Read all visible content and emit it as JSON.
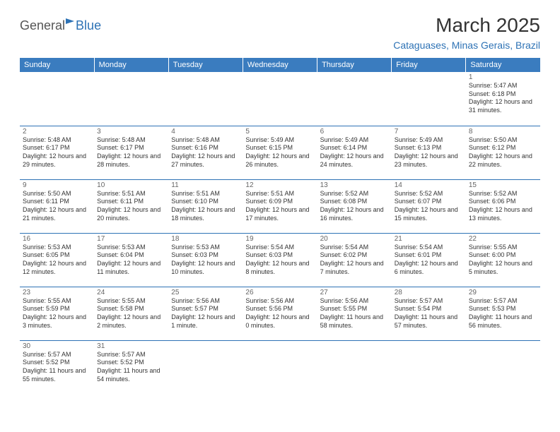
{
  "logo": {
    "text1": "General",
    "text2": "Blue"
  },
  "title": "March 2025",
  "location": "Cataguases, Minas Gerais, Brazil",
  "colors": {
    "header_bg": "#3a7cbf",
    "header_fg": "#ffffff",
    "accent": "#2d72b5",
    "text": "#333333",
    "muted": "#666666",
    "logo_gray": "#555555"
  },
  "day_headers": [
    "Sunday",
    "Monday",
    "Tuesday",
    "Wednesday",
    "Thursday",
    "Friday",
    "Saturday"
  ],
  "weeks": [
    [
      null,
      null,
      null,
      null,
      null,
      null,
      {
        "n": "1",
        "sunrise": "5:47 AM",
        "sunset": "6:18 PM",
        "daylight": "12 hours and 31 minutes."
      }
    ],
    [
      {
        "n": "2",
        "sunrise": "5:48 AM",
        "sunset": "6:17 PM",
        "daylight": "12 hours and 29 minutes."
      },
      {
        "n": "3",
        "sunrise": "5:48 AM",
        "sunset": "6:17 PM",
        "daylight": "12 hours and 28 minutes."
      },
      {
        "n": "4",
        "sunrise": "5:48 AM",
        "sunset": "6:16 PM",
        "daylight": "12 hours and 27 minutes."
      },
      {
        "n": "5",
        "sunrise": "5:49 AM",
        "sunset": "6:15 PM",
        "daylight": "12 hours and 26 minutes."
      },
      {
        "n": "6",
        "sunrise": "5:49 AM",
        "sunset": "6:14 PM",
        "daylight": "12 hours and 24 minutes."
      },
      {
        "n": "7",
        "sunrise": "5:49 AM",
        "sunset": "6:13 PM",
        "daylight": "12 hours and 23 minutes."
      },
      {
        "n": "8",
        "sunrise": "5:50 AM",
        "sunset": "6:12 PM",
        "daylight": "12 hours and 22 minutes."
      }
    ],
    [
      {
        "n": "9",
        "sunrise": "5:50 AM",
        "sunset": "6:11 PM",
        "daylight": "12 hours and 21 minutes."
      },
      {
        "n": "10",
        "sunrise": "5:51 AM",
        "sunset": "6:11 PM",
        "daylight": "12 hours and 20 minutes."
      },
      {
        "n": "11",
        "sunrise": "5:51 AM",
        "sunset": "6:10 PM",
        "daylight": "12 hours and 18 minutes."
      },
      {
        "n": "12",
        "sunrise": "5:51 AM",
        "sunset": "6:09 PM",
        "daylight": "12 hours and 17 minutes."
      },
      {
        "n": "13",
        "sunrise": "5:52 AM",
        "sunset": "6:08 PM",
        "daylight": "12 hours and 16 minutes."
      },
      {
        "n": "14",
        "sunrise": "5:52 AM",
        "sunset": "6:07 PM",
        "daylight": "12 hours and 15 minutes."
      },
      {
        "n": "15",
        "sunrise": "5:52 AM",
        "sunset": "6:06 PM",
        "daylight": "12 hours and 13 minutes."
      }
    ],
    [
      {
        "n": "16",
        "sunrise": "5:53 AM",
        "sunset": "6:05 PM",
        "daylight": "12 hours and 12 minutes."
      },
      {
        "n": "17",
        "sunrise": "5:53 AM",
        "sunset": "6:04 PM",
        "daylight": "12 hours and 11 minutes."
      },
      {
        "n": "18",
        "sunrise": "5:53 AM",
        "sunset": "6:03 PM",
        "daylight": "12 hours and 10 minutes."
      },
      {
        "n": "19",
        "sunrise": "5:54 AM",
        "sunset": "6:03 PM",
        "daylight": "12 hours and 8 minutes."
      },
      {
        "n": "20",
        "sunrise": "5:54 AM",
        "sunset": "6:02 PM",
        "daylight": "12 hours and 7 minutes."
      },
      {
        "n": "21",
        "sunrise": "5:54 AM",
        "sunset": "6:01 PM",
        "daylight": "12 hours and 6 minutes."
      },
      {
        "n": "22",
        "sunrise": "5:55 AM",
        "sunset": "6:00 PM",
        "daylight": "12 hours and 5 minutes."
      }
    ],
    [
      {
        "n": "23",
        "sunrise": "5:55 AM",
        "sunset": "5:59 PM",
        "daylight": "12 hours and 3 minutes."
      },
      {
        "n": "24",
        "sunrise": "5:55 AM",
        "sunset": "5:58 PM",
        "daylight": "12 hours and 2 minutes."
      },
      {
        "n": "25",
        "sunrise": "5:56 AM",
        "sunset": "5:57 PM",
        "daylight": "12 hours and 1 minute."
      },
      {
        "n": "26",
        "sunrise": "5:56 AM",
        "sunset": "5:56 PM",
        "daylight": "12 hours and 0 minutes."
      },
      {
        "n": "27",
        "sunrise": "5:56 AM",
        "sunset": "5:55 PM",
        "daylight": "11 hours and 58 minutes."
      },
      {
        "n": "28",
        "sunrise": "5:57 AM",
        "sunset": "5:54 PM",
        "daylight": "11 hours and 57 minutes."
      },
      {
        "n": "29",
        "sunrise": "5:57 AM",
        "sunset": "5:53 PM",
        "daylight": "11 hours and 56 minutes."
      }
    ],
    [
      {
        "n": "30",
        "sunrise": "5:57 AM",
        "sunset": "5:52 PM",
        "daylight": "11 hours and 55 minutes."
      },
      {
        "n": "31",
        "sunrise": "5:57 AM",
        "sunset": "5:52 PM",
        "daylight": "11 hours and 54 minutes."
      },
      null,
      null,
      null,
      null,
      null
    ]
  ],
  "labels": {
    "sunrise": "Sunrise:",
    "sunset": "Sunset:",
    "daylight": "Daylight:"
  }
}
